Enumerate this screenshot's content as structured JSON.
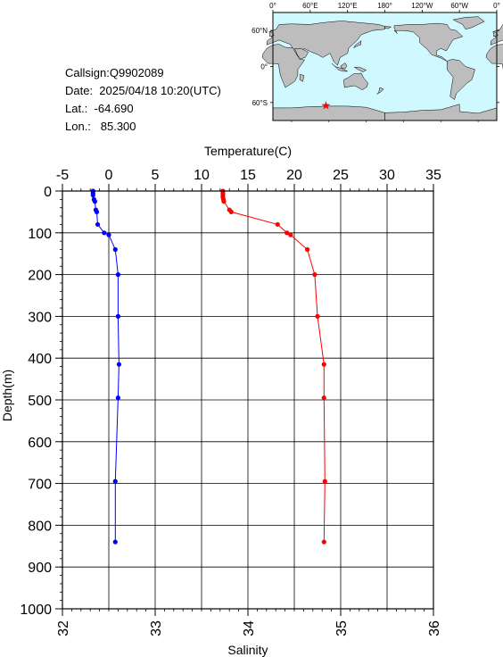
{
  "info": {
    "callsign": "Callsign:Q9902089",
    "date": "Date:  2025/04/18 10:20(UTC)",
    "lat": "Lat.:  -64.690",
    "lon": "Lon.:   85.300"
  },
  "map": {
    "top_ticks": [
      "0°",
      "60°E",
      "120°E",
      "180°",
      "120°W",
      "60°W",
      "0°"
    ],
    "lat_ticks": [
      "60°N",
      "0°",
      "60°S"
    ],
    "station": {
      "lon": 85.3,
      "lat": -64.69
    },
    "colors": {
      "ocean": "#cff8ff",
      "land": "#bdbdbd",
      "marker": "#ff0000"
    }
  },
  "chart_data": {
    "type": "line",
    "ylabel": "Depth(m)",
    "ylim": [
      1000,
      0
    ],
    "yticks": [
      0,
      100,
      200,
      300,
      400,
      500,
      600,
      700,
      800,
      900,
      1000
    ],
    "grid": true,
    "top_axis": {
      "label": "Temperature(C)",
      "lim": [
        -5,
        35
      ],
      "ticks": [
        -5,
        0,
        5,
        10,
        15,
        20,
        25,
        30,
        35
      ]
    },
    "bottom_axis": {
      "label": "Salinity",
      "lim": [
        32,
        36
      ],
      "ticks": [
        32,
        33,
        34,
        35,
        36
      ]
    },
    "series": [
      {
        "axis": "temperature",
        "color": "#ff0000",
        "points": [
          {
            "depth": 0,
            "value": 12.3
          },
          {
            "depth": 5,
            "value": 12.3
          },
          {
            "depth": 10,
            "value": 12.3
          },
          {
            "depth": 15,
            "value": 12.3
          },
          {
            "depth": 20,
            "value": 12.35
          },
          {
            "depth": 25,
            "value": 12.4
          },
          {
            "depth": 45,
            "value": 13.0
          },
          {
            "depth": 50,
            "value": 13.2
          },
          {
            "depth": 80,
            "value": 18.2
          },
          {
            "depth": 100,
            "value": 19.2
          },
          {
            "depth": 105,
            "value": 19.6
          },
          {
            "depth": 140,
            "value": 21.4
          },
          {
            "depth": 200,
            "value": 22.2
          },
          {
            "depth": 300,
            "value": 22.5
          },
          {
            "depth": 415,
            "value": 23.2
          },
          {
            "depth": 495,
            "value": 23.2
          },
          {
            "depth": 695,
            "value": 23.3
          },
          {
            "depth": 840,
            "value": 23.2
          }
        ]
      },
      {
        "axis": "salinity",
        "color": "#0000ff",
        "points": [
          {
            "depth": 0,
            "value": 32.33
          },
          {
            "depth": 5,
            "value": 32.33
          },
          {
            "depth": 10,
            "value": 32.33
          },
          {
            "depth": 20,
            "value": 32.34
          },
          {
            "depth": 25,
            "value": 32.35
          },
          {
            "depth": 45,
            "value": 32.36
          },
          {
            "depth": 50,
            "value": 32.37
          },
          {
            "depth": 80,
            "value": 32.38
          },
          {
            "depth": 100,
            "value": 32.45
          },
          {
            "depth": 105,
            "value": 32.5
          },
          {
            "depth": 140,
            "value": 32.57
          },
          {
            "depth": 200,
            "value": 32.6
          },
          {
            "depth": 300,
            "value": 32.6
          },
          {
            "depth": 415,
            "value": 32.61
          },
          {
            "depth": 495,
            "value": 32.6
          },
          {
            "depth": 695,
            "value": 32.57
          },
          {
            "depth": 840,
            "value": 32.57
          }
        ]
      }
    ]
  }
}
